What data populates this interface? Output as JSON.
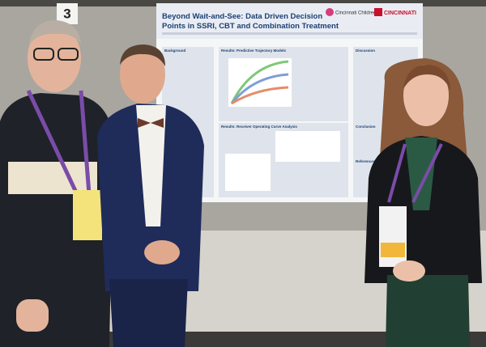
{
  "sign": {
    "number": "3"
  },
  "poster": {
    "title": "Beyond Wait-and-See: Data Driven Decision Points in SSRI, CBT and Combination Treatment",
    "logos": [
      "Cincinnati Children's",
      "CINCINNATI"
    ],
    "sections": [
      "Background",
      "Results: Predictive Trajectory Models",
      "Discussion",
      "Results: Receiver Operating Curve Analysis",
      "Conclusion",
      "References"
    ]
  }
}
